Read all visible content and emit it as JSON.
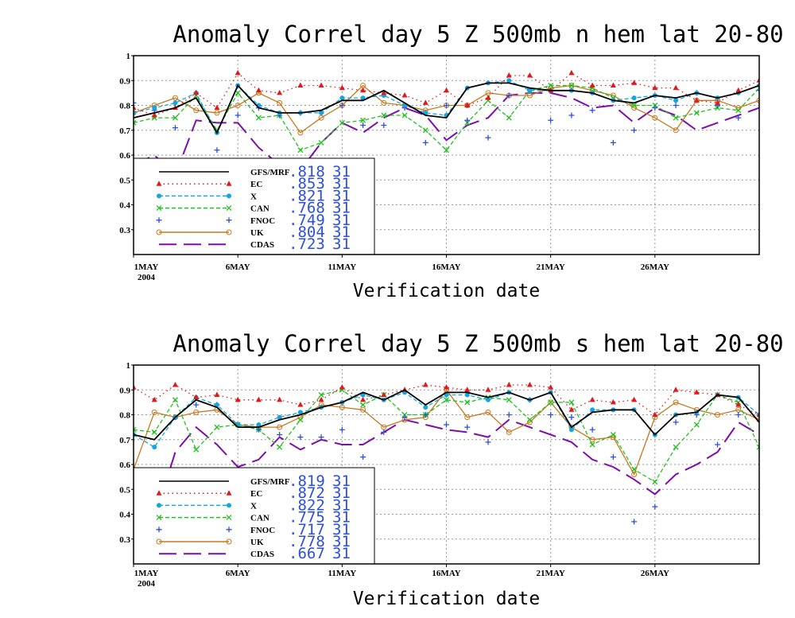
{
  "chart_data": [
    {
      "type": "line",
      "title": "Anomaly Correl  day 5  Z 500mb  n hem  lat 20-80",
      "xlabel": "Verification date",
      "ylabel": "",
      "ylim": [
        0.2,
        1.0
      ],
      "yticks": [
        "0.3",
        "0.4",
        "0.5",
        "0.6",
        "0.7",
        "0.8",
        "0.9",
        "1"
      ],
      "xticks": [
        {
          "day": 1,
          "label": "1MAY",
          "sub": "2004"
        },
        {
          "day": 6,
          "label": "6MAY"
        },
        {
          "day": 11,
          "label": "11MAY"
        },
        {
          "day": 16,
          "label": "16MAY"
        },
        {
          "day": 21,
          "label": "21MAY"
        },
        {
          "day": 26,
          "label": "26MAY"
        }
      ],
      "x": [
        1,
        2,
        3,
        4,
        5,
        6,
        7,
        8,
        9,
        10,
        11,
        12,
        13,
        14,
        15,
        16,
        17,
        18,
        19,
        20,
        21,
        22,
        23,
        24,
        25,
        26,
        27,
        28,
        29,
        30,
        31
      ],
      "series": [
        {
          "name": "GFS/MRF",
          "score": ".818",
          "count": "31",
          "color": "#000000",
          "style": "solid",
          "marker": "none",
          "values": [
            0.75,
            0.77,
            0.79,
            0.83,
            0.69,
            0.88,
            0.79,
            0.77,
            0.77,
            0.78,
            0.82,
            0.82,
            0.86,
            0.81,
            0.76,
            0.75,
            0.87,
            0.89,
            0.89,
            0.87,
            0.86,
            0.86,
            0.85,
            0.82,
            0.81,
            0.84,
            0.83,
            0.85,
            0.83,
            0.85,
            0.88
          ]
        },
        {
          "name": "EC",
          "score": ".853",
          "count": "31",
          "color": "#e0191c",
          "style": "dotted",
          "marker": "triangle",
          "values": [
            0.79,
            0.76,
            0.79,
            0.85,
            0.79,
            0.93,
            0.86,
            0.85,
            0.88,
            0.88,
            0.87,
            0.86,
            0.85,
            0.84,
            0.81,
            0.86,
            0.8,
            0.83,
            0.92,
            0.92,
            0.86,
            0.93,
            0.88,
            0.88,
            0.89,
            0.87,
            0.87,
            0.82,
            0.81,
            0.86,
            0.9
          ]
        },
        {
          "name": "X",
          "score": ".821",
          "count": "31",
          "color": "#14a6e0",
          "style": "dashed",
          "marker": "circle",
          "values": [
            0.77,
            0.79,
            0.81,
            0.85,
            0.69,
            0.88,
            0.8,
            0.77,
            0.77,
            0.77,
            0.83,
            0.83,
            0.84,
            0.8,
            0.77,
            0.76,
            0.87,
            0.89,
            0.9,
            0.86,
            0.86,
            0.86,
            0.85,
            0.82,
            0.83,
            0.84,
            0.82,
            0.85,
            0.83,
            0.85,
            0.88
          ]
        },
        {
          "name": "CAN",
          "score": ".768",
          "count": "31",
          "color": "#21c21d",
          "style": "dashed",
          "marker": "x",
          "values": [
            0.73,
            0.75,
            0.75,
            0.84,
            0.7,
            0.85,
            0.75,
            0.76,
            0.62,
            0.65,
            0.73,
            0.74,
            0.76,
            0.76,
            0.7,
            0.62,
            0.73,
            0.82,
            0.75,
            0.86,
            0.88,
            0.88,
            0.87,
            0.83,
            0.8,
            0.8,
            0.75,
            0.77,
            0.79,
            0.78,
            0.87
          ]
        },
        {
          "name": "FNOC",
          "score": ".749",
          "count": "31",
          "color": "#2c4fe0",
          "style": "points",
          "marker": "plus",
          "values": [
            0.81,
            0.78,
            0.71,
            0.85,
            0.62,
            0.76,
            0.79,
            0.76,
            0.77,
            0.77,
            0.8,
            0.72,
            0.72,
            0.79,
            0.65,
            0.8,
            0.74,
            0.67,
            0.84,
            0.86,
            0.74,
            0.76,
            0.78,
            0.65,
            0.7,
            0.79,
            0.8,
            0.85,
            0.8,
            0.75,
            0.86
          ]
        },
        {
          "name": "UK",
          "score": ".804",
          "count": "31",
          "color": "#c8781e",
          "style": "solid",
          "marker": "circle-open",
          "values": [
            0.77,
            0.8,
            0.83,
            0.78,
            0.77,
            0.8,
            0.85,
            0.81,
            0.69,
            0.75,
            0.8,
            0.88,
            0.81,
            0.8,
            0.78,
            0.8,
            0.8,
            0.85,
            0.84,
            0.84,
            0.87,
            0.88,
            0.86,
            0.84,
            0.79,
            0.75,
            0.7,
            0.82,
            0.82,
            0.79,
            0.82
          ]
        },
        {
          "name": "CDAS",
          "score": ".723",
          "count": "31",
          "color": "#7f0dab",
          "style": "longdash",
          "marker": "none",
          "values": [
            0.56,
            0.6,
            0.52,
            0.74,
            0.73,
            0.73,
            0.63,
            0.56,
            0.54,
            0.65,
            0.73,
            0.69,
            0.75,
            0.79,
            0.76,
            0.66,
            0.72,
            0.75,
            0.84,
            0.85,
            0.85,
            0.83,
            0.79,
            0.8,
            0.73,
            0.79,
            0.76,
            0.7,
            0.73,
            0.76,
            0.79
          ]
        }
      ]
    },
    {
      "type": "line",
      "title": "Anomaly Correl  day 5  Z 500mb  s hem  lat 20-80",
      "xlabel": "Verification date",
      "ylabel": "",
      "ylim": [
        0.2,
        1.0
      ],
      "yticks": [
        "0.3",
        "0.4",
        "0.5",
        "0.6",
        "0.7",
        "0.8",
        "0.9",
        "1"
      ],
      "xticks": [
        {
          "day": 1,
          "label": "1MAY",
          "sub": "2004"
        },
        {
          "day": 6,
          "label": "6MAY"
        },
        {
          "day": 11,
          "label": "11MAY"
        },
        {
          "day": 16,
          "label": "16MAY"
        },
        {
          "day": 21,
          "label": "21MAY"
        },
        {
          "day": 26,
          "label": "26MAY"
        }
      ],
      "x": [
        1,
        2,
        3,
        4,
        5,
        6,
        7,
        8,
        9,
        10,
        11,
        12,
        13,
        14,
        15,
        16,
        17,
        18,
        19,
        20,
        21,
        22,
        23,
        24,
        25,
        26,
        27,
        28,
        29,
        30,
        31
      ],
      "series": [
        {
          "name": "GFS/MRF",
          "score": ".819",
          "count": "31",
          "color": "#000000",
          "style": "solid",
          "marker": "none",
          "values": [
            0.72,
            0.7,
            0.79,
            0.86,
            0.83,
            0.75,
            0.75,
            0.78,
            0.8,
            0.83,
            0.85,
            0.89,
            0.86,
            0.9,
            0.84,
            0.89,
            0.89,
            0.87,
            0.89,
            0.86,
            0.89,
            0.75,
            0.81,
            0.82,
            0.82,
            0.72,
            0.8,
            0.81,
            0.88,
            0.87,
            0.77
          ]
        },
        {
          "name": "EC",
          "score": ".872",
          "count": "31",
          "color": "#e0191c",
          "style": "dotted",
          "marker": "triangle",
          "values": [
            0.91,
            0.86,
            0.92,
            0.87,
            0.88,
            0.86,
            0.86,
            0.86,
            0.84,
            0.86,
            0.91,
            0.86,
            0.88,
            0.9,
            0.92,
            0.91,
            0.9,
            0.9,
            0.92,
            0.92,
            0.91,
            0.82,
            0.86,
            0.85,
            0.86,
            0.8,
            0.9,
            0.89,
            0.88,
            0.84,
            0.8
          ]
        },
        {
          "name": "X",
          "score": ".822",
          "count": "31",
          "color": "#14a6e0",
          "style": "dashed",
          "marker": "circle",
          "values": [
            0.72,
            0.67,
            0.79,
            0.87,
            0.84,
            0.76,
            0.76,
            0.79,
            0.81,
            0.83,
            0.85,
            0.88,
            0.86,
            0.89,
            0.83,
            0.88,
            0.88,
            0.86,
            0.89,
            0.86,
            0.89,
            0.74,
            0.82,
            0.82,
            0.82,
            0.72,
            0.8,
            0.81,
            0.88,
            0.87,
            0.8
          ]
        },
        {
          "name": "CAN",
          "score": ".775",
          "count": "31",
          "color": "#21c21d",
          "style": "dashed",
          "marker": "x",
          "values": [
            0.74,
            0.73,
            0.86,
            0.66,
            0.75,
            0.76,
            0.74,
            0.67,
            0.78,
            0.88,
            0.9,
            0.84,
            0.88,
            0.8,
            0.8,
            0.86,
            0.85,
            0.87,
            0.86,
            0.78,
            0.85,
            0.85,
            0.68,
            0.72,
            0.58,
            0.53,
            0.67,
            0.76,
            0.88,
            0.85,
            0.67
          ]
        },
        {
          "name": "FNOC",
          "score": ".717",
          "count": "31",
          "color": "#2c4fe0",
          "style": "points",
          "marker": "plus",
          "values": [
            0.55,
            0.54,
            0.79,
            0.84,
            0.84,
            0.57,
            0.74,
            0.72,
            0.71,
            0.71,
            0.74,
            0.63,
            0.73,
            0.79,
            0.8,
            0.76,
            0.75,
            0.69,
            0.8,
            0.86,
            0.8,
            0.79,
            0.74,
            0.63,
            0.37,
            0.43,
            0.77,
            0.8,
            0.68,
            0.8,
            0.8
          ]
        },
        {
          "name": "UK",
          "score": ".778",
          "count": "31",
          "color": "#c8781e",
          "style": "solid",
          "marker": "circle-open",
          "values": [
            0.58,
            0.81,
            0.79,
            0.81,
            0.82,
            0.76,
            0.75,
            0.75,
            0.79,
            0.84,
            0.83,
            0.82,
            0.75,
            0.78,
            0.79,
            0.9,
            0.79,
            0.81,
            0.73,
            0.77,
            0.85,
            0.75,
            0.7,
            0.71,
            0.56,
            0.79,
            0.85,
            0.82,
            0.8,
            0.82,
            0.78
          ]
        },
        {
          "name": "CDAS",
          "score": ".667",
          "count": "31",
          "color": "#7f0dab",
          "style": "longdash",
          "marker": "none",
          "values": [
            0.36,
            0.38,
            0.65,
            0.75,
            0.68,
            0.59,
            0.62,
            0.71,
            0.66,
            0.7,
            0.68,
            0.68,
            0.73,
            0.78,
            0.76,
            0.74,
            0.73,
            0.71,
            0.78,
            0.75,
            0.72,
            0.69,
            0.62,
            0.59,
            0.54,
            0.48,
            0.56,
            0.6,
            0.65,
            0.77,
            0.72
          ]
        }
      ]
    }
  ]
}
